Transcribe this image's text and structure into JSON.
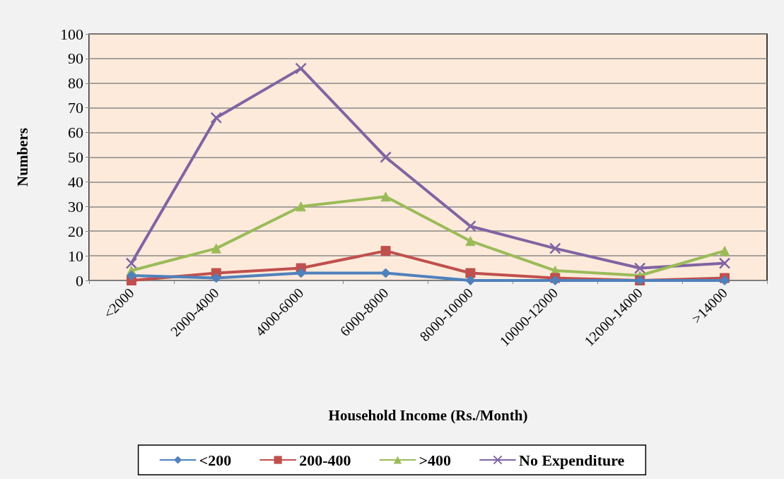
{
  "chart_data": {
    "type": "line",
    "xlabel": "Household Income (Rs./Month)",
    "ylabel": "Numbers",
    "categories": [
      "<2000",
      "2000-4000",
      "4000-6000",
      "6000-8000",
      "8000-10000",
      "10000-12000",
      "12000-14000",
      ">14000"
    ],
    "series": [
      {
        "name": "<200",
        "color": "#4f81bd",
        "marker": "diamond",
        "values": [
          2,
          1,
          3,
          3,
          0,
          0,
          0,
          0
        ]
      },
      {
        "name": "200-400",
        "color": "#c0504d",
        "marker": "square",
        "values": [
          0,
          3,
          5,
          12,
          3,
          1,
          0,
          1
        ]
      },
      {
        "name": ">400",
        "color": "#9bbb59",
        "marker": "triangle",
        "values": [
          4,
          13,
          30,
          34,
          16,
          4,
          2,
          12
        ]
      },
      {
        "name": "No Expenditure",
        "color": "#8064a2",
        "marker": "cross",
        "values": [
          7,
          66,
          86,
          50,
          22,
          13,
          5,
          7
        ]
      }
    ],
    "ylim": [
      0,
      100
    ],
    "yticks": [
      0,
      10,
      20,
      30,
      40,
      50,
      60,
      70,
      80,
      90,
      100
    ],
    "grid": "y",
    "legend": "bottom"
  }
}
